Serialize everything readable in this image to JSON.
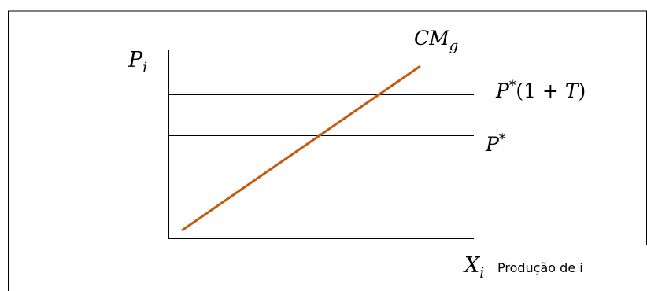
{
  "diagram": {
    "y_axis_symbol": "P",
    "y_axis_subscript": "i",
    "x_axis_symbol": "X",
    "x_axis_subscript": "i",
    "x_axis_caption": "Produção de i",
    "curve_symbol": "CM",
    "curve_subscript": "g",
    "upper_line_base": "P",
    "upper_line_superscript": "*",
    "upper_line_suffix": "(1 + ",
    "upper_line_T": "T",
    "upper_line_close": ")",
    "lower_line_base": "P",
    "lower_line_superscript": "*",
    "curve_color": "#C55A11",
    "line_color": "#000000"
  }
}
